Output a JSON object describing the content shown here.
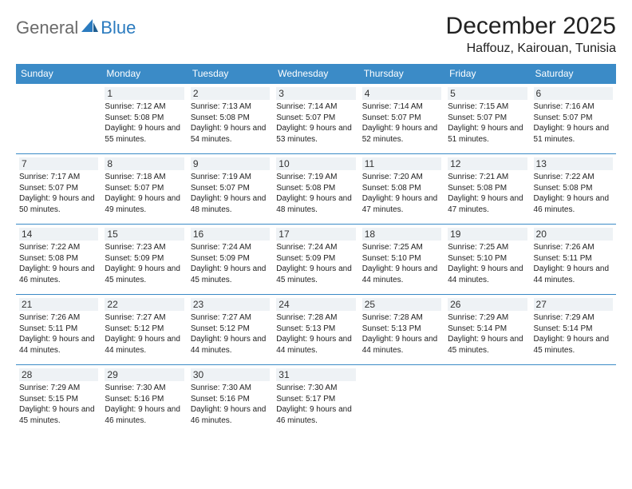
{
  "logo": {
    "general": "General",
    "blue": "Blue"
  },
  "title": "December 2025",
  "location": "Haffouz, Kairouan, Tunisia",
  "colors": {
    "header_bg": "#3b8bc7",
    "header_text": "#ffffff",
    "daynum_bg": "#eef2f5",
    "border": "#3b8bc7",
    "logo_gray": "#6a6a6a",
    "logo_blue": "#2b7bbf"
  },
  "weekdays": [
    "Sunday",
    "Monday",
    "Tuesday",
    "Wednesday",
    "Thursday",
    "Friday",
    "Saturday"
  ],
  "weeks": [
    [
      null,
      {
        "d": "1",
        "sr": "7:12 AM",
        "ss": "5:08 PM",
        "dl": "9 hours and 55 minutes."
      },
      {
        "d": "2",
        "sr": "7:13 AM",
        "ss": "5:08 PM",
        "dl": "9 hours and 54 minutes."
      },
      {
        "d": "3",
        "sr": "7:14 AM",
        "ss": "5:07 PM",
        "dl": "9 hours and 53 minutes."
      },
      {
        "d": "4",
        "sr": "7:14 AM",
        "ss": "5:07 PM",
        "dl": "9 hours and 52 minutes."
      },
      {
        "d": "5",
        "sr": "7:15 AM",
        "ss": "5:07 PM",
        "dl": "9 hours and 51 minutes."
      },
      {
        "d": "6",
        "sr": "7:16 AM",
        "ss": "5:07 PM",
        "dl": "9 hours and 51 minutes."
      }
    ],
    [
      {
        "d": "7",
        "sr": "7:17 AM",
        "ss": "5:07 PM",
        "dl": "9 hours and 50 minutes."
      },
      {
        "d": "8",
        "sr": "7:18 AM",
        "ss": "5:07 PM",
        "dl": "9 hours and 49 minutes."
      },
      {
        "d": "9",
        "sr": "7:19 AM",
        "ss": "5:07 PM",
        "dl": "9 hours and 48 minutes."
      },
      {
        "d": "10",
        "sr": "7:19 AM",
        "ss": "5:08 PM",
        "dl": "9 hours and 48 minutes."
      },
      {
        "d": "11",
        "sr": "7:20 AM",
        "ss": "5:08 PM",
        "dl": "9 hours and 47 minutes."
      },
      {
        "d": "12",
        "sr": "7:21 AM",
        "ss": "5:08 PM",
        "dl": "9 hours and 47 minutes."
      },
      {
        "d": "13",
        "sr": "7:22 AM",
        "ss": "5:08 PM",
        "dl": "9 hours and 46 minutes."
      }
    ],
    [
      {
        "d": "14",
        "sr": "7:22 AM",
        "ss": "5:08 PM",
        "dl": "9 hours and 46 minutes."
      },
      {
        "d": "15",
        "sr": "7:23 AM",
        "ss": "5:09 PM",
        "dl": "9 hours and 45 minutes."
      },
      {
        "d": "16",
        "sr": "7:24 AM",
        "ss": "5:09 PM",
        "dl": "9 hours and 45 minutes."
      },
      {
        "d": "17",
        "sr": "7:24 AM",
        "ss": "5:09 PM",
        "dl": "9 hours and 45 minutes."
      },
      {
        "d": "18",
        "sr": "7:25 AM",
        "ss": "5:10 PM",
        "dl": "9 hours and 44 minutes."
      },
      {
        "d": "19",
        "sr": "7:25 AM",
        "ss": "5:10 PM",
        "dl": "9 hours and 44 minutes."
      },
      {
        "d": "20",
        "sr": "7:26 AM",
        "ss": "5:11 PM",
        "dl": "9 hours and 44 minutes."
      }
    ],
    [
      {
        "d": "21",
        "sr": "7:26 AM",
        "ss": "5:11 PM",
        "dl": "9 hours and 44 minutes."
      },
      {
        "d": "22",
        "sr": "7:27 AM",
        "ss": "5:12 PM",
        "dl": "9 hours and 44 minutes."
      },
      {
        "d": "23",
        "sr": "7:27 AM",
        "ss": "5:12 PM",
        "dl": "9 hours and 44 minutes."
      },
      {
        "d": "24",
        "sr": "7:28 AM",
        "ss": "5:13 PM",
        "dl": "9 hours and 44 minutes."
      },
      {
        "d": "25",
        "sr": "7:28 AM",
        "ss": "5:13 PM",
        "dl": "9 hours and 44 minutes."
      },
      {
        "d": "26",
        "sr": "7:29 AM",
        "ss": "5:14 PM",
        "dl": "9 hours and 45 minutes."
      },
      {
        "d": "27",
        "sr": "7:29 AM",
        "ss": "5:14 PM",
        "dl": "9 hours and 45 minutes."
      }
    ],
    [
      {
        "d": "28",
        "sr": "7:29 AM",
        "ss": "5:15 PM",
        "dl": "9 hours and 45 minutes."
      },
      {
        "d": "29",
        "sr": "7:30 AM",
        "ss": "5:16 PM",
        "dl": "9 hours and 46 minutes."
      },
      {
        "d": "30",
        "sr": "7:30 AM",
        "ss": "5:16 PM",
        "dl": "9 hours and 46 minutes."
      },
      {
        "d": "31",
        "sr": "7:30 AM",
        "ss": "5:17 PM",
        "dl": "9 hours and 46 minutes."
      },
      null,
      null,
      null
    ]
  ]
}
